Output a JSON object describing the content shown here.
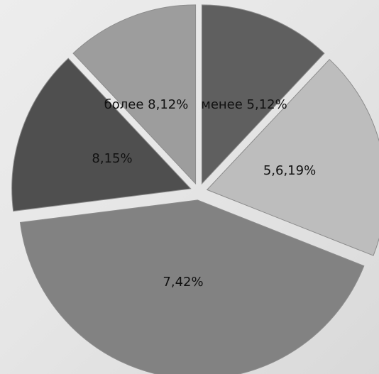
{
  "chart_data": {
    "type": "pie",
    "title": "",
    "exploded": true,
    "legend": "none",
    "slices": [
      {
        "category": "менее 5",
        "value": 12,
        "label": "менее 5,12%",
        "color": "#5f5f5f"
      },
      {
        "category": "5,6",
        "value": 19,
        "label": "5,6,19%",
        "color": "#bdbdbd"
      },
      {
        "category": "7",
        "value": 42,
        "label": "7,42%",
        "color": "#828282"
      },
      {
        "category": "8",
        "value": 15,
        "label": "8,15%",
        "color": "#4f4f4f"
      },
      {
        "category": "более 8",
        "value": 12,
        "label": "более 8,12%",
        "color": "#9d9d9d"
      }
    ]
  }
}
